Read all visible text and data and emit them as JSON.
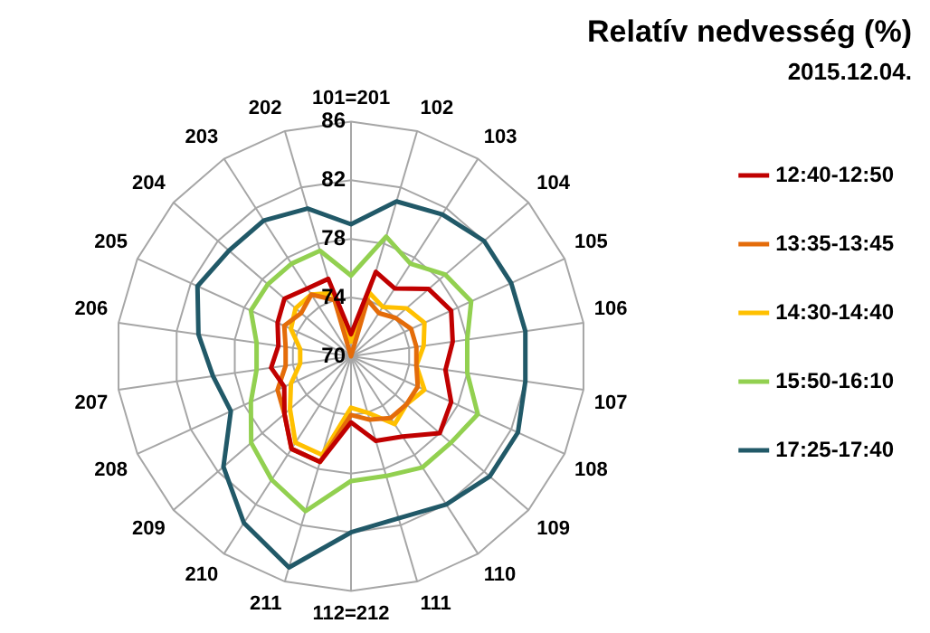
{
  "chart_data": {
    "type": "radar",
    "title": "Relatív nedvesség (%)",
    "subtitle": "2015.12.04.",
    "categories": [
      "101=201",
      "102",
      "103",
      "104",
      "105",
      "106",
      "107",
      "108",
      "109",
      "110",
      "111",
      "112=212",
      "211",
      "210",
      "209",
      "208",
      "207",
      "206",
      "205",
      "204",
      "203",
      "202"
    ],
    "ylim": [
      70,
      86
    ],
    "yticks": [
      70,
      74,
      78,
      82,
      86
    ],
    "grid": true,
    "legend": "right",
    "marker": "none",
    "series": [
      {
        "name": "12:40-12:50",
        "color": "#c00000",
        "values": [
          71.5,
          76,
          75.5,
          77,
          77.5,
          77,
          76.5,
          77.5,
          78,
          76.5,
          76,
          74.5,
          77.5,
          77.5,
          76,
          75,
          75.5,
          75,
          75.5,
          76,
          75.5,
          75.5
        ]
      },
      {
        "name": "13:35-13:45",
        "color": "#e46c0a",
        "values": [
          70,
          74,
          73.5,
          74,
          74.5,
          74.5,
          74.5,
          75,
          75,
          75,
          74.5,
          74,
          77.5,
          77.5,
          76,
          75.5,
          74.5,
          74.5,
          75,
          74.5,
          75,
          74
        ]
      },
      {
        "name": "14:30-14:40",
        "color": "#ffc000",
        "values": [
          71,
          74.5,
          74,
          75,
          75.5,
          75,
          74.5,
          75.5,
          75,
          75.5,
          74,
          73.5,
          77,
          77,
          75.5,
          74.5,
          73.5,
          73.5,
          74.5,
          75,
          75,
          74.5
        ]
      },
      {
        "name": "15:50-16:10",
        "color": "#92d050",
        "values": [
          75.5,
          78.5,
          77.5,
          78.5,
          79,
          78,
          78,
          79.5,
          79,
          79,
          78.5,
          78.5,
          81,
          80,
          79,
          77.5,
          76.5,
          76.5,
          77.5,
          77.5,
          77.5,
          77.5
        ]
      },
      {
        "name": "17:25-17:40",
        "color": "#215968",
        "values": [
          79,
          81,
          81.5,
          82,
          82,
          82,
          82,
          82.5,
          82.5,
          82,
          81.5,
          82,
          85,
          83.5,
          81.5,
          79,
          79.5,
          80.5,
          81.5,
          81,
          81,
          80.5
        ]
      }
    ]
  }
}
